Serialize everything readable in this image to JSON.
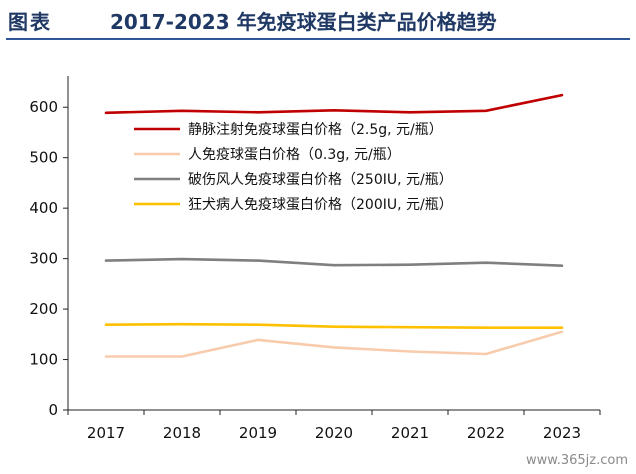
{
  "header": {
    "label": "图表",
    "title": "2017-2023 年免疫球蛋白类产品价格趋势"
  },
  "watermark": "www.365jz.com",
  "chart_data": {
    "type": "line",
    "title": "2017-2023 年免疫球蛋白类产品价格趋势",
    "x": [
      "2017",
      "2018",
      "2019",
      "2020",
      "2021",
      "2022",
      "2023"
    ],
    "ylim": [
      0,
      650
    ],
    "yticks": [
      "0",
      "100",
      "200",
      "300",
      "400",
      "500",
      "600"
    ],
    "grid": false,
    "legend_position": "top-right",
    "series": [
      {
        "name": "静脉注射免疫球蛋白价格（2.5g, 元/瓶）",
        "color": "#c00000",
        "values": [
          589,
          593,
          590,
          594,
          590,
          593,
          624
        ]
      },
      {
        "name": "人免疫球蛋白价格（0.3g, 元/瓶）",
        "color": "#f8cbad",
        "values": [
          106,
          106,
          139,
          124,
          116,
          111,
          155
        ]
      },
      {
        "name": "破伤风人免疫球蛋白价格（250IU, 元/瓶）",
        "color": "#7f7f7f",
        "values": [
          296,
          299,
          296,
          287,
          288,
          292,
          286
        ]
      },
      {
        "name": "狂犬病人免疫球蛋白价格（200IU, 元/瓶）",
        "color": "#ffc000",
        "values": [
          169,
          170,
          169,
          165,
          164,
          163,
          163
        ]
      }
    ]
  }
}
